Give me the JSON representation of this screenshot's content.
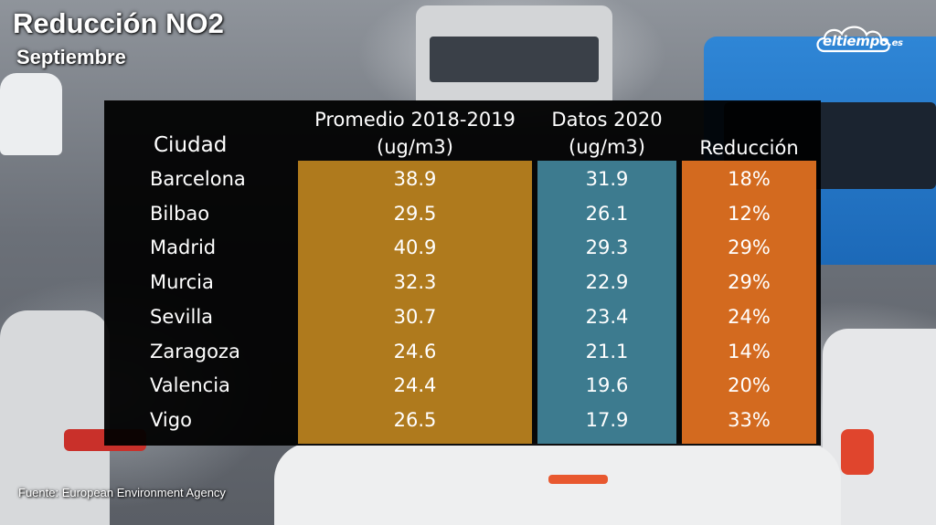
{
  "header": {
    "title": "Reducción NO2",
    "subtitle": "Septiembre"
  },
  "brand": {
    "name": "eltiempo",
    "suffix": ".es"
  },
  "source": "Fuente: European Environment Agency",
  "colors": {
    "col_2018_2019": "#af7a1d",
    "col_2020": "#3d7b8f",
    "col_reduccion": "#d36a1f",
    "panel": "#000000"
  },
  "chart_data": {
    "type": "table",
    "columns": {
      "city": "Ciudad",
      "avg_2018_2019_line1": "Promedio 2018-2019",
      "avg_2018_2019_line2": "(ug/m3)",
      "data_2020_line1": "Datos 2020",
      "data_2020_line2": "(ug/m3)",
      "reduction": "Reducción"
    },
    "rows": [
      {
        "city": "Barcelona",
        "avg_2018_2019": "38.9",
        "data_2020": "31.9",
        "reduction": "18%"
      },
      {
        "city": "Bilbao",
        "avg_2018_2019": "29.5",
        "data_2020": "26.1",
        "reduction": "12%"
      },
      {
        "city": "Madrid",
        "avg_2018_2019": "40.9",
        "data_2020": "29.3",
        "reduction": "29%"
      },
      {
        "city": "Murcia",
        "avg_2018_2019": "32.3",
        "data_2020": "22.9",
        "reduction": "29%"
      },
      {
        "city": "Sevilla",
        "avg_2018_2019": "30.7",
        "data_2020": "23.4",
        "reduction": "24%"
      },
      {
        "city": "Zaragoza",
        "avg_2018_2019": "24.6",
        "data_2020": "21.1",
        "reduction": "14%"
      },
      {
        "city": "Valencia",
        "avg_2018_2019": "24.4",
        "data_2020": "19.6",
        "reduction": "20%"
      },
      {
        "city": "Vigo",
        "avg_2018_2019": "26.5",
        "data_2020": "17.9",
        "reduction": "33%"
      }
    ]
  }
}
